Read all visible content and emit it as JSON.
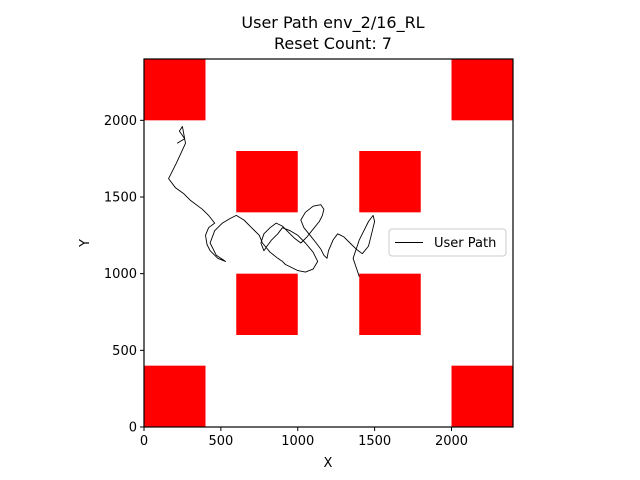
{
  "chart_data": {
    "type": "line",
    "title": "User Path env_2/16_RL",
    "subtitle": "Reset Count: 7",
    "xlabel": "X",
    "ylabel": "Y",
    "xlim": [
      0,
      2400
    ],
    "ylim": [
      0,
      2400
    ],
    "xticks": [
      0,
      500,
      1000,
      1500,
      2000
    ],
    "yticks": [
      0,
      500,
      1000,
      1500,
      2000
    ],
    "grid": false,
    "legend": {
      "placement": "center-right",
      "entries": [
        "User Path"
      ]
    },
    "colors": {
      "obstacle": "#ff0000",
      "path": "#000000"
    },
    "obstacles": [
      {
        "x": [
          0,
          400
        ],
        "y": [
          2000,
          2400
        ]
      },
      {
        "x": [
          2000,
          2400
        ],
        "y": [
          2000,
          2400
        ]
      },
      {
        "x": [
          600,
          1000
        ],
        "y": [
          1400,
          1800
        ]
      },
      {
        "x": [
          1400,
          1800
        ],
        "y": [
          1400,
          1800
        ]
      },
      {
        "x": [
          600,
          1000
        ],
        "y": [
          600,
          1000
        ]
      },
      {
        "x": [
          1400,
          1800
        ],
        "y": [
          600,
          1000
        ]
      },
      {
        "x": [
          0,
          400
        ],
        "y": [
          0,
          400
        ]
      },
      {
        "x": [
          2000,
          2400
        ],
        "y": [
          0,
          400
        ]
      }
    ],
    "series": [
      {
        "name": "User Path",
        "x": [
          215,
          265,
          230,
          250,
          270,
          210,
          160,
          205,
          260,
          300,
          380,
          420,
          460,
          420,
          400,
          410,
          430,
          480,
          530,
          470,
          430,
          460,
          510,
          560,
          600,
          650,
          700,
          750,
          770,
          820,
          870,
          900,
          920,
          960,
          1000,
          1050,
          1100,
          1130,
          1100,
          1050,
          1000,
          950,
          900,
          870,
          830,
          800,
          780,
          760,
          780,
          820,
          860,
          900,
          940,
          980,
          1020,
          1060,
          1100,
          1140,
          1160,
          1170,
          1150,
          1100,
          1050,
          1020,
          1040,
          1080,
          1120,
          1150,
          1170,
          1190,
          1200,
          1230,
          1260,
          1300,
          1340,
          1380,
          1420,
          1460,
          1480,
          1500,
          1490,
          1460,
          1430,
          1400,
          1380,
          1360,
          1380,
          1400
        ],
        "y": [
          1850,
          1880,
          1930,
          1960,
          1850,
          1720,
          1620,
          1560,
          1520,
          1480,
          1420,
          1380,
          1330,
          1300,
          1250,
          1190,
          1150,
          1100,
          1080,
          1120,
          1200,
          1280,
          1330,
          1360,
          1380,
          1350,
          1300,
          1250,
          1200,
          1140,
          1100,
          1080,
          1060,
          1040,
          1020,
          1010,
          1030,
          1080,
          1140,
          1200,
          1250,
          1280,
          1300,
          1260,
          1220,
          1180,
          1150,
          1200,
          1260,
          1300,
          1330,
          1310,
          1270,
          1230,
          1200,
          1240,
          1290,
          1340,
          1380,
          1420,
          1450,
          1440,
          1400,
          1350,
          1300,
          1250,
          1200,
          1160,
          1120,
          1100,
          1150,
          1220,
          1260,
          1240,
          1200,
          1160,
          1130,
          1180,
          1260,
          1340,
          1380,
          1340,
          1280,
          1220,
          1160,
          1100,
          1040,
          980
        ]
      }
    ]
  }
}
